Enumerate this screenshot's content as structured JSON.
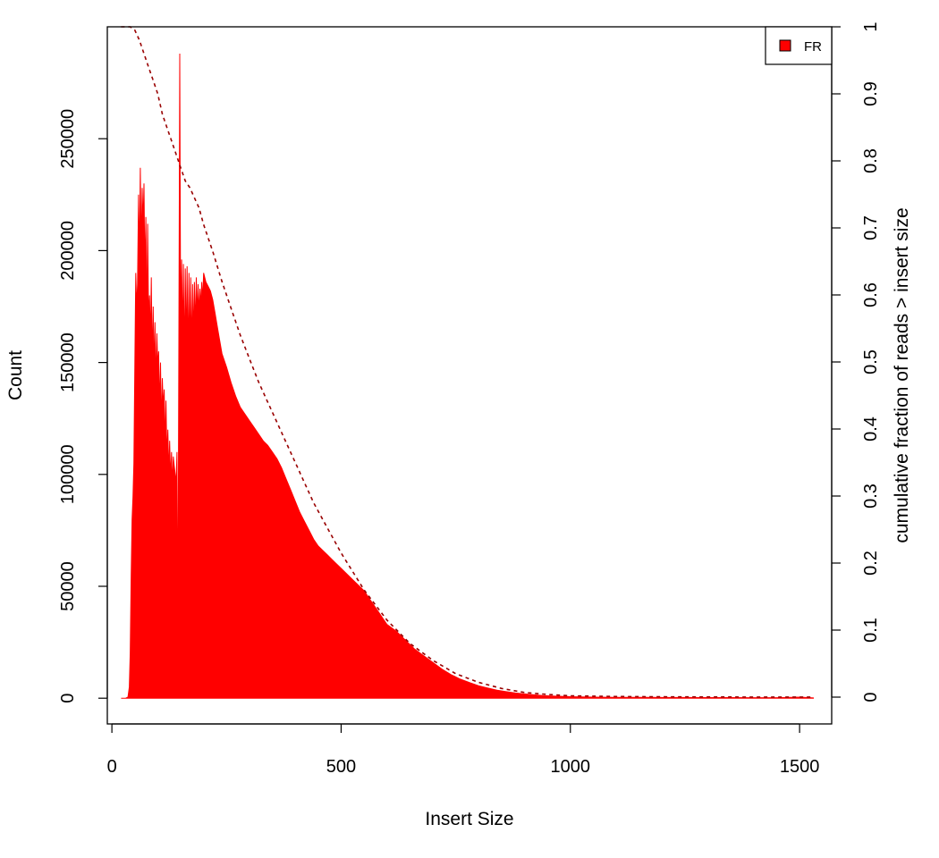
{
  "chart_data": {
    "type": "area",
    "xlabel": "Insert Size",
    "ylabel": "Count",
    "y2label": "cumulative fraction of reads > insert size",
    "xlim": [
      -10,
      1570
    ],
    "ylim": [
      -11500,
      300000
    ],
    "y2lim": [
      -0.04,
      1.0
    ],
    "xticks": [
      0,
      500,
      1000,
      1500
    ],
    "yticks": [
      0,
      50000,
      100000,
      150000,
      200000,
      250000
    ],
    "y2ticks": [
      0,
      0.1,
      0.2,
      0.3,
      0.4,
      0.5,
      0.6,
      0.7,
      0.8,
      0.9,
      1
    ],
    "xtick_labels": [
      "0",
      "500",
      "1000",
      "1500"
    ],
    "ytick_labels": [
      "0",
      "50000",
      "100000",
      "150000",
      "200000",
      "250000"
    ],
    "y2tick_labels": [
      "0",
      "0.1",
      "0.2",
      "0.3",
      "0.4",
      "0.5",
      "0.6",
      "0.7",
      "0.8",
      "0.9",
      "1"
    ],
    "grid": false,
    "legend_position": "top-right",
    "series": [
      {
        "name": "FR",
        "color": "#ff0000",
        "style": "filled",
        "axis": "left",
        "x": [
          20,
          30,
          35,
          38,
          40,
          42,
          44,
          46,
          48,
          50,
          52,
          54,
          56,
          58,
          60,
          62,
          64,
          66,
          68,
          70,
          72,
          74,
          76,
          78,
          80,
          82,
          84,
          86,
          88,
          90,
          92,
          94,
          96,
          98,
          100,
          102,
          104,
          106,
          108,
          110,
          112,
          114,
          116,
          118,
          120,
          122,
          124,
          126,
          128,
          130,
          132,
          134,
          136,
          138,
          140,
          142,
          144,
          146,
          148,
          150,
          152,
          154,
          156,
          158,
          160,
          162,
          164,
          166,
          168,
          170,
          172,
          174,
          176,
          178,
          180,
          182,
          184,
          186,
          188,
          190,
          192,
          194,
          196,
          198,
          200,
          205,
          210,
          215,
          220,
          225,
          230,
          235,
          240,
          250,
          260,
          270,
          280,
          290,
          300,
          310,
          320,
          330,
          340,
          350,
          360,
          370,
          380,
          390,
          400,
          410,
          420,
          430,
          440,
          450,
          460,
          470,
          480,
          490,
          500,
          510,
          520,
          530,
          540,
          550,
          560,
          570,
          580,
          590,
          600,
          620,
          640,
          660,
          680,
          700,
          720,
          740,
          760,
          780,
          800,
          820,
          840,
          860,
          880,
          900,
          920,
          940,
          960,
          980,
          1000,
          1025,
          1050,
          1075,
          1100,
          1125,
          1150,
          1175,
          1200,
          1250,
          1300,
          1350,
          1400,
          1450,
          1500,
          1530
        ],
        "values": [
          0,
          0,
          500,
          5000,
          20000,
          55000,
          80000,
          90000,
          105000,
          150000,
          190000,
          175000,
          185000,
          225000,
          195000,
          237000,
          200000,
          228000,
          212000,
          230000,
          190000,
          215000,
          165000,
          212000,
          170000,
          180000,
          160000,
          188000,
          150000,
          175000,
          145000,
          168000,
          140000,
          163000,
          148000,
          155000,
          130000,
          150000,
          120000,
          143000,
          130000,
          138000,
          112000,
          133000,
          108000,
          120000,
          100000,
          115000,
          98000,
          110000,
          95000,
          108000,
          104000,
          100000,
          96000,
          110000,
          25000,
          160000,
          288000,
          165000,
          196000,
          160000,
          194000,
          150000,
          192000,
          155000,
          193000,
          150000,
          190000,
          152000,
          188000,
          155000,
          185000,
          160000,
          186000,
          165000,
          188000,
          170000,
          185000,
          172000,
          183000,
          175000,
          186000,
          178000,
          190000,
          186000,
          184000,
          182000,
          178000,
          172000,
          166000,
          160000,
          154000,
          148000,
          141000,
          135000,
          130000,
          127000,
          124000,
          121000,
          118000,
          115000,
          113000,
          110000,
          107000,
          103000,
          98000,
          93000,
          88000,
          83000,
          79000,
          75000,
          71000,
          68000,
          66000,
          64000,
          62000,
          60000,
          58000,
          56000,
          54000,
          52000,
          50000,
          48000,
          45000,
          42000,
          39000,
          36000,
          33000,
          30000,
          26000,
          22000,
          19000,
          16000,
          13000,
          10500,
          8500,
          7000,
          5500,
          4500,
          3600,
          2900,
          2300,
          1900,
          1500,
          1200,
          1000,
          850,
          700,
          600,
          500,
          450,
          420,
          400,
          380,
          360,
          340,
          320,
          300,
          280,
          260,
          250,
          500,
          150
        ]
      },
      {
        "name": "",
        "color": "#990000",
        "style": "dashed",
        "axis": "right",
        "x": [
          20,
          40,
          50,
          60,
          70,
          80,
          90,
          100,
          110,
          120,
          130,
          140,
          150,
          160,
          170,
          180,
          190,
          200,
          220,
          240,
          260,
          280,
          300,
          320,
          340,
          360,
          380,
          400,
          420,
          440,
          460,
          480,
          500,
          550,
          600,
          650,
          700,
          750,
          800,
          850,
          900,
          950,
          1000,
          1100,
          1200,
          1300,
          1400,
          1500,
          1530
        ],
        "values": [
          1.0,
          1.0,
          0.995,
          0.98,
          0.96,
          0.94,
          0.92,
          0.9,
          0.87,
          0.85,
          0.83,
          0.81,
          0.79,
          0.77,
          0.76,
          0.745,
          0.73,
          0.705,
          0.665,
          0.62,
          0.58,
          0.54,
          0.505,
          0.47,
          0.44,
          0.41,
          0.38,
          0.35,
          0.32,
          0.29,
          0.265,
          0.24,
          0.215,
          0.16,
          0.115,
          0.08,
          0.055,
          0.035,
          0.022,
          0.013,
          0.007,
          0.004,
          0.002,
          0.001,
          0.0005,
          0.0003,
          0.0002,
          0.0001,
          0
        ]
      }
    ]
  }
}
